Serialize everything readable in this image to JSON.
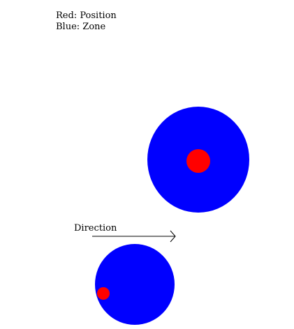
{
  "legend": {
    "red_label": "Red: Position",
    "blue_label": "Blue: Zone"
  },
  "direction": {
    "label": "Direction"
  },
  "colors": {
    "position": "#ff0000",
    "zone": "#0000ff",
    "arrow": "#000000"
  }
}
